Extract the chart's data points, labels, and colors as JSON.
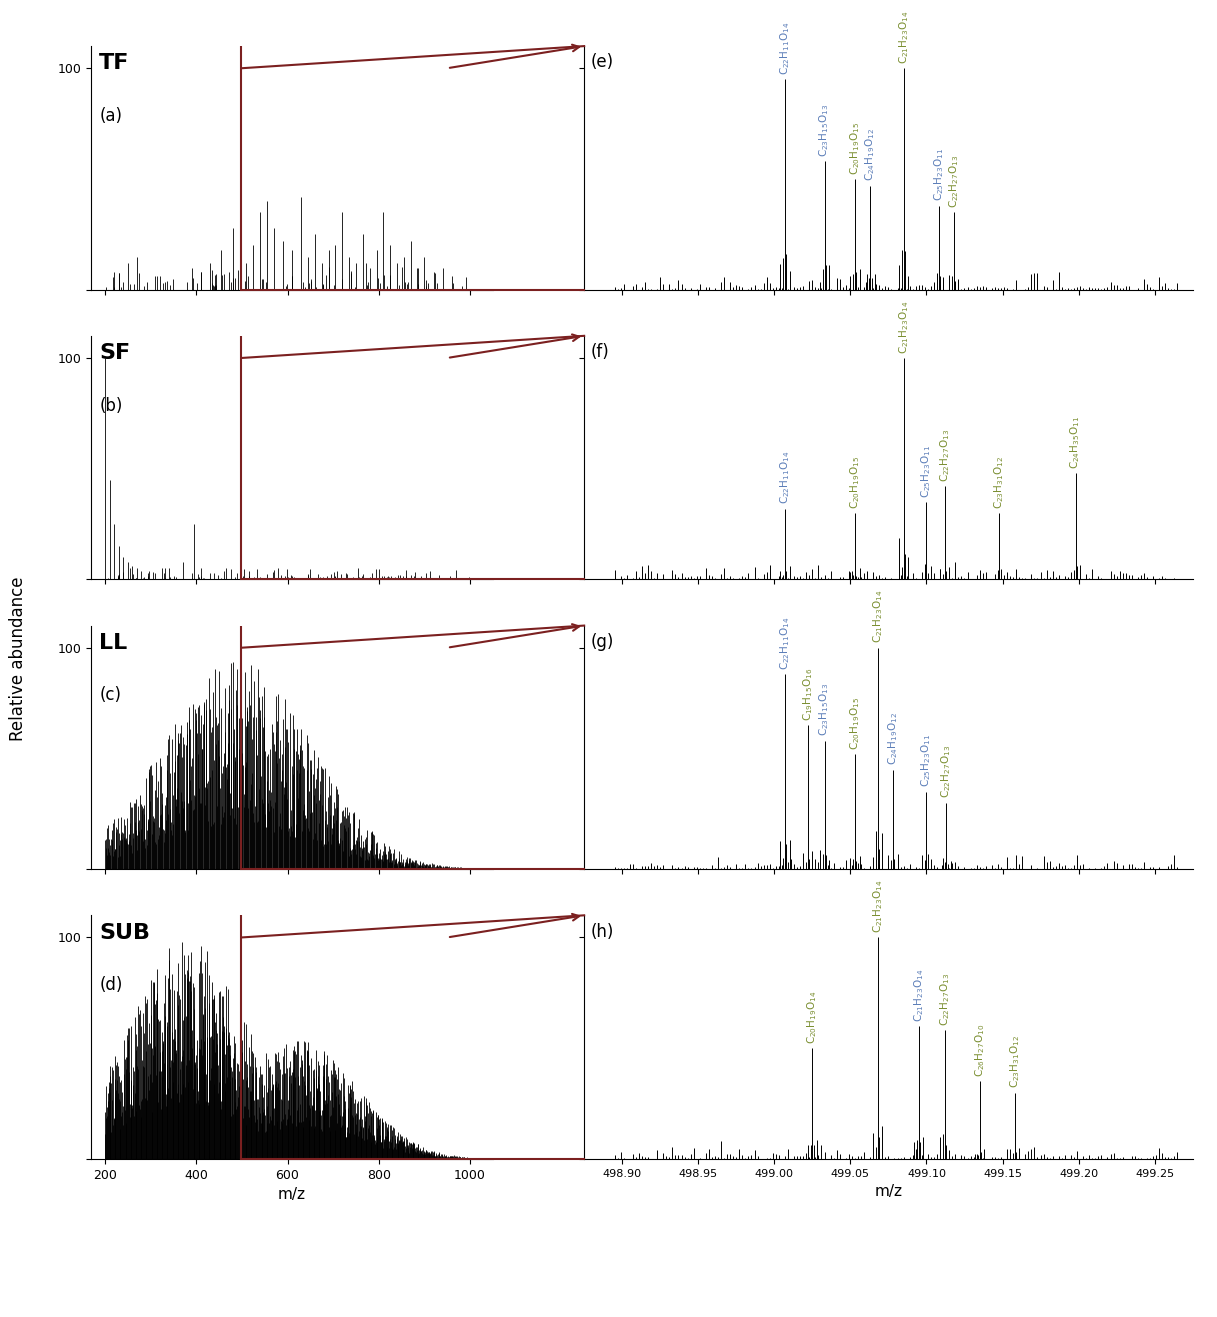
{
  "panels": {
    "left_labels": [
      "TF",
      "SF",
      "LL",
      "SUB"
    ],
    "left_panel_labels": [
      "(a)",
      "(b)",
      "(c)",
      "(d)"
    ],
    "right_panel_labels": [
      "(e)",
      "(f)",
      "(g)",
      "(h)"
    ],
    "xlim_left": [
      170,
      1050
    ],
    "xticks_left": [
      200,
      400,
      600,
      800,
      1000
    ],
    "ylim": [
      0,
      110
    ],
    "yticks": [
      0,
      100
    ],
    "xlabel_left": "m/z",
    "xlabel_right": "m/z",
    "ylabel": "Relative abundance",
    "xlim_right": [
      498.875,
      499.275
    ],
    "xticks_right": [
      498.9,
      498.95,
      499.0,
      499.05,
      499.1,
      499.15,
      499.2,
      499.25
    ]
  },
  "arrow_color": "#7B2020",
  "zoom_x": 499.0,
  "annotations": {
    "e": [
      {
        "x": 499.007,
        "height": 95,
        "label": "C$_{22}$H$_{11}$O$_{14}$",
        "color": "#5B7DB8"
      },
      {
        "x": 499.033,
        "height": 58,
        "label": "C$_{23}$H$_{15}$O$_{13}$",
        "color": "#5B7DB8"
      },
      {
        "x": 499.053,
        "height": 50,
        "label": "C$_{20}$H$_{19}$O$_{15}$",
        "color": "#7A8E30"
      },
      {
        "x": 499.063,
        "height": 47,
        "label": "C$_{24}$H$_{19}$O$_{12}$",
        "color": "#5B7DB8"
      },
      {
        "x": 499.085,
        "height": 100,
        "label": "C$_{21}$H$_{23}$O$_{14}$",
        "color": "#7A8E30"
      },
      {
        "x": 499.108,
        "height": 38,
        "label": "C$_{25}$H$_{23}$O$_{11}$",
        "color": "#5B7DB8"
      },
      {
        "x": 499.118,
        "height": 35,
        "label": "C$_{22}$H$_{27}$O$_{13}$",
        "color": "#7A8E30"
      }
    ],
    "f": [
      {
        "x": 499.007,
        "height": 32,
        "label": "C$_{22}$H$_{11}$O$_{14}$",
        "color": "#5B7DB8"
      },
      {
        "x": 499.053,
        "height": 30,
        "label": "C$_{20}$H$_{19}$O$_{15}$",
        "color": "#7A8E30"
      },
      {
        "x": 499.085,
        "height": 100,
        "label": "C$_{21}$H$_{23}$O$_{14}$",
        "color": "#7A8E30"
      },
      {
        "x": 499.1,
        "height": 35,
        "label": "C$_{25}$H$_{23}$O$_{11}$",
        "color": "#5B7DB8"
      },
      {
        "x": 499.112,
        "height": 42,
        "label": "C$_{22}$H$_{27}$O$_{13}$",
        "color": "#7A8E30"
      },
      {
        "x": 499.148,
        "height": 30,
        "label": "C$_{23}$H$_{31}$O$_{12}$",
        "color": "#7A8E30"
      },
      {
        "x": 499.198,
        "height": 48,
        "label": "C$_{24}$H$_{35}$O$_{11}$",
        "color": "#7A8E30"
      }
    ],
    "g": [
      {
        "x": 499.007,
        "height": 88,
        "label": "C$_{22}$H$_{11}$O$_{14}$",
        "color": "#5B7DB8"
      },
      {
        "x": 499.022,
        "height": 65,
        "label": "C$_{19}$H$_{15}$O$_{16}$",
        "color": "#7A8E30"
      },
      {
        "x": 499.033,
        "height": 58,
        "label": "C$_{23}$H$_{15}$O$_{13}$",
        "color": "#5B7DB8"
      },
      {
        "x": 499.053,
        "height": 52,
        "label": "C$_{20}$H$_{19}$O$_{15}$",
        "color": "#7A8E30"
      },
      {
        "x": 499.068,
        "height": 100,
        "label": "C$_{21}$H$_{23}$O$_{14}$",
        "color": "#7A8E30"
      },
      {
        "x": 499.078,
        "height": 45,
        "label": "C$_{24}$H$_{19}$O$_{12}$",
        "color": "#5B7DB8"
      },
      {
        "x": 499.1,
        "height": 35,
        "label": "C$_{25}$H$_{23}$O$_{11}$",
        "color": "#5B7DB8"
      },
      {
        "x": 499.113,
        "height": 30,
        "label": "C$_{22}$H$_{27}$O$_{13}$",
        "color": "#7A8E30"
      }
    ],
    "h": [
      {
        "x": 499.025,
        "height": 50,
        "label": "C$_{20}$H$_{19}$O$_{14}$",
        "color": "#7A8E30"
      },
      {
        "x": 499.068,
        "height": 100,
        "label": "C$_{21}$H$_{23}$O$_{14}$",
        "color": "#7A8E30"
      },
      {
        "x": 499.112,
        "height": 58,
        "label": "C$_{22}$H$_{27}$O$_{13}$",
        "color": "#7A8E30"
      },
      {
        "x": 499.135,
        "height": 35,
        "label": "C$_{26}$H$_{27}$O$_{10}$",
        "color": "#7A8E30"
      },
      {
        "x": 499.158,
        "height": 30,
        "label": "C$_{23}$H$_{31}$O$_{12}$",
        "color": "#7A8E30"
      },
      {
        "x": 499.095,
        "height": 60,
        "label": "C$_{21}$H$_{23}$O$_{14}$",
        "color": "#5B7DB8"
      }
    ]
  }
}
